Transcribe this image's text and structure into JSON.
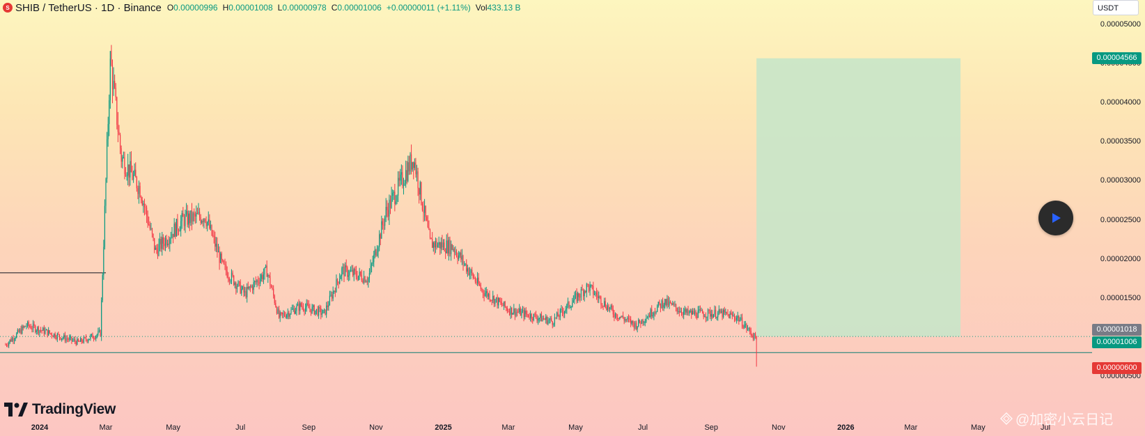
{
  "header": {
    "symbol_icon": "shib-coin-icon",
    "title": "SHIB / TetherUS · 1D · Binance",
    "open_label": "O",
    "open": "0.00000996",
    "high_label": "H",
    "high": "0.00001008",
    "low_label": "L",
    "low": "0.00000978",
    "close_label": "C",
    "close": "0.00001006",
    "change": "+0.00000011 (+1.11%)",
    "vol_label": "Vol",
    "vol": "433.13 B"
  },
  "price_axis": {
    "currency": "USDT",
    "ticks": [
      "0.00005000",
      "0.00004500",
      "0.00004000",
      "0.00003500",
      "0.00003000",
      "0.00002500",
      "0.00002000",
      "0.00001500",
      "0.00000500"
    ],
    "tags": {
      "target": "0.00004566",
      "prev": "0.00001018",
      "last": "0.00001006",
      "stop": "0.00000600"
    }
  },
  "time_axis": {
    "ticks": [
      {
        "label": "2024",
        "bold": true
      },
      {
        "label": "Mar",
        "bold": false
      },
      {
        "label": "May",
        "bold": false
      },
      {
        "label": "Jul",
        "bold": false
      },
      {
        "label": "Sep",
        "bold": false
      },
      {
        "label": "Nov",
        "bold": false
      },
      {
        "label": "2025",
        "bold": true
      },
      {
        "label": "Mar",
        "bold": false
      },
      {
        "label": "May",
        "bold": false
      },
      {
        "label": "Jul",
        "bold": false
      },
      {
        "label": "Sep",
        "bold": false
      },
      {
        "label": "Nov",
        "bold": false
      },
      {
        "label": "2026",
        "bold": true
      },
      {
        "label": "Mar",
        "bold": false
      },
      {
        "label": "May",
        "bold": false
      },
      {
        "label": "Jul",
        "bold": false
      }
    ]
  },
  "logo": {
    "text": "TradingView"
  },
  "watermark": {
    "text": "@加密小云日记"
  },
  "play_icon": "play-icon",
  "colors": {
    "up": "#089981",
    "down": "#f23645",
    "target_zone": "#c8e6c9",
    "stop_zone": "#ffb3b3"
  },
  "chart_data": {
    "type": "candlestick",
    "symbol": "SHIB/USDT",
    "interval": "1D",
    "ylim": [
      4.5e-06,
      5.2e-05
    ],
    "x_range": [
      "2023-12-01",
      "2026-07-15"
    ],
    "price_series": [
      [
        "2023-12-01",
        9e-06
      ],
      [
        "2023-12-20",
        1.15e-05
      ],
      [
        "2024-01-10",
        1.05e-05
      ],
      [
        "2024-02-05",
        9.3e-06
      ],
      [
        "2024-02-25",
        1.05e-05
      ],
      [
        "2024-03-05",
        4.56e-05
      ],
      [
        "2024-03-15",
        3.3e-05
      ],
      [
        "2024-04-01",
        2.9e-05
      ],
      [
        "2024-04-15",
        2.1e-05
      ],
      [
        "2024-05-10",
        2.5e-05
      ],
      [
        "2024-05-30",
        2.55e-05
      ],
      [
        "2024-06-15",
        1.9e-05
      ],
      [
        "2024-07-05",
        1.55e-05
      ],
      [
        "2024-07-25",
        1.85e-05
      ],
      [
        "2024-08-05",
        1.25e-05
      ],
      [
        "2024-08-25",
        1.4e-05
      ],
      [
        "2024-09-15",
        1.3e-05
      ],
      [
        "2024-10-01",
        1.85e-05
      ],
      [
        "2024-10-25",
        1.75e-05
      ],
      [
        "2024-11-10",
        2.6e-05
      ],
      [
        "2024-12-05",
        3.3e-05
      ],
      [
        "2024-12-20",
        2.2e-05
      ],
      [
        "2025-01-10",
        2.15e-05
      ],
      [
        "2025-02-05",
        1.6e-05
      ],
      [
        "2025-03-01",
        1.35e-05
      ],
      [
        "2025-03-20",
        1.28e-05
      ],
      [
        "2025-04-10",
        1.2e-05
      ],
      [
        "2025-05-12",
        1.65e-05
      ],
      [
        "2025-06-05",
        1.3e-05
      ],
      [
        "2025-06-25",
        1.15e-05
      ],
      [
        "2025-07-20",
        1.45e-05
      ],
      [
        "2025-08-10",
        1.3e-05
      ],
      [
        "2025-09-10",
        1.3e-05
      ],
      [
        "2025-09-25",
        1.25e-05
      ],
      [
        "2025-10-10",
        1e-05
      ],
      [
        "2025-10-12",
        1.01e-05
      ]
    ],
    "annotations": {
      "horizontal_lines": [
        1.82e-05,
        8e-06
      ],
      "target_zone": {
        "from": 1.006e-05,
        "to": 4.566e-05,
        "x_start": "2025-10-12",
        "x_end": "2026-04-15"
      },
      "stop_zone": {
        "from": 6e-06,
        "to": 1.006e-05,
        "x_start": "2025-10-12",
        "x_end": "2026-04-15"
      }
    }
  }
}
